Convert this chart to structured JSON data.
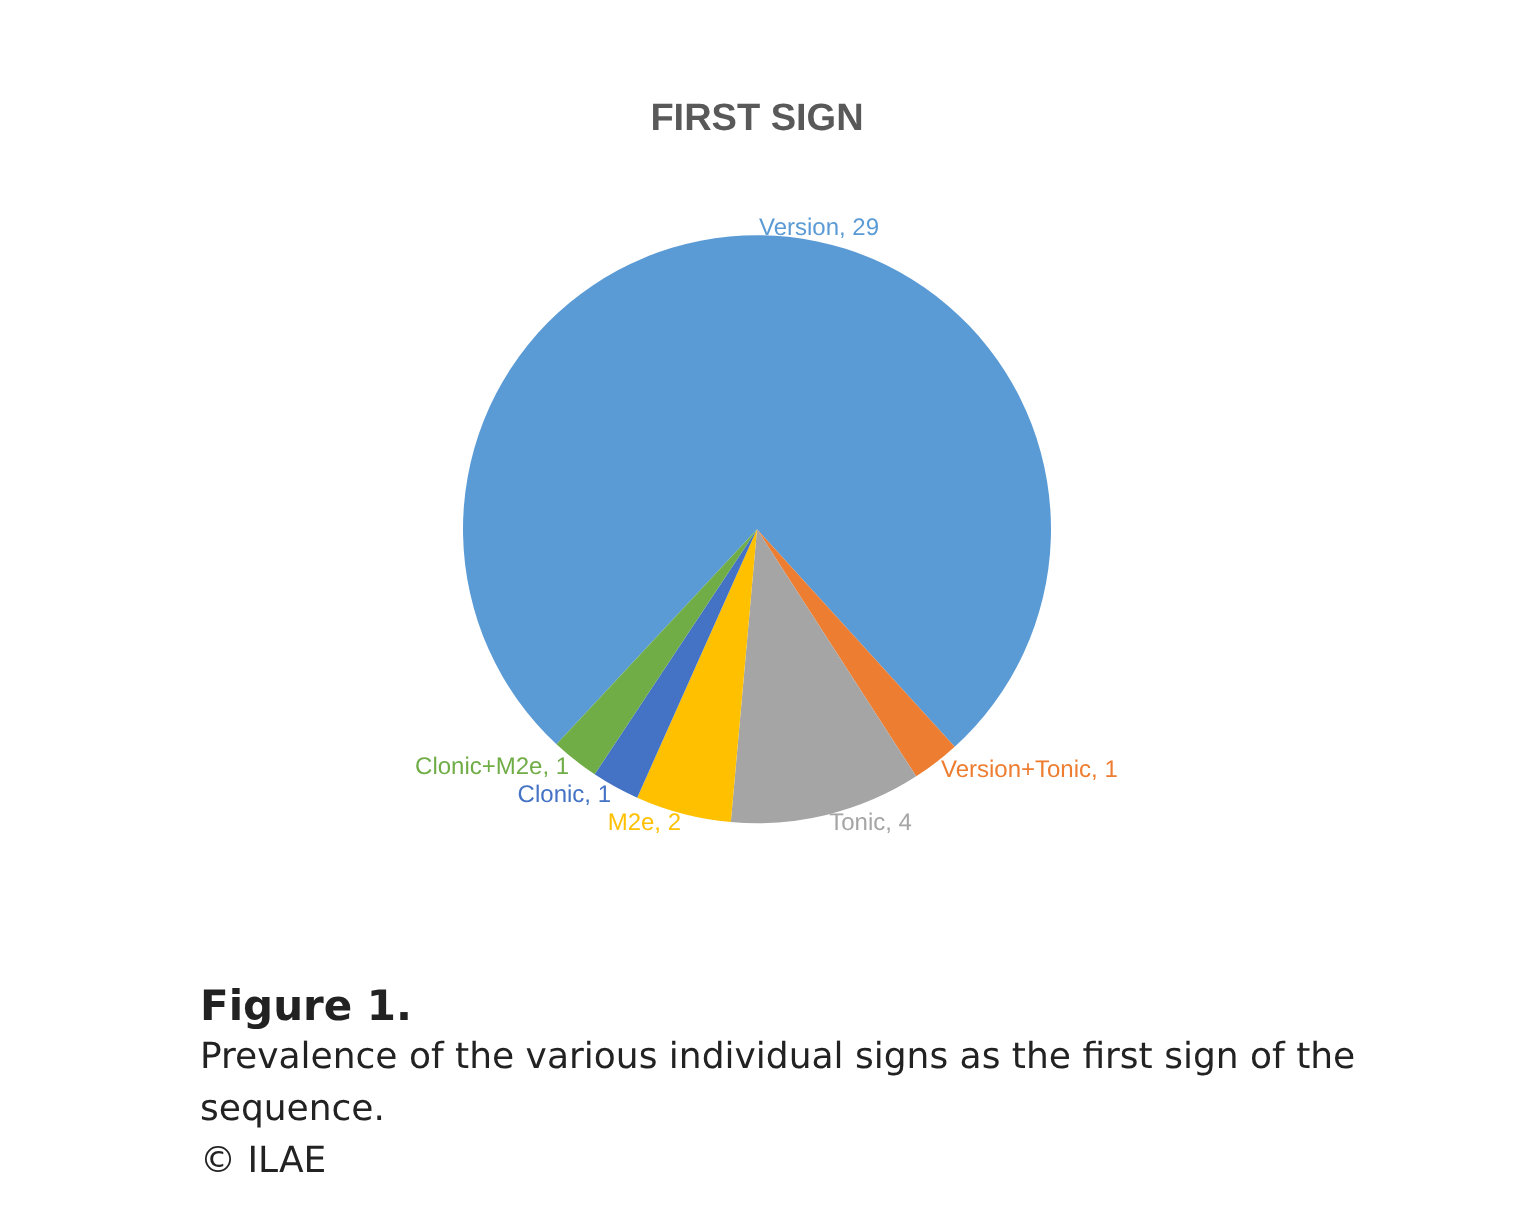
{
  "chart_data": {
    "type": "pie",
    "title": "FIRST SIGN",
    "categories": [
      "Version",
      "Version+Tonic",
      "Tonic",
      "M2e",
      "Clonic",
      "Clonic+M2e"
    ],
    "values": [
      29,
      1,
      4,
      2,
      1,
      1
    ],
    "colors": [
      "#5b9bd5",
      "#ed7d31",
      "#a5a5a5",
      "#ffc000",
      "#4472c4",
      "#70ad47"
    ],
    "value_labels": [
      ", 29",
      ", 1",
      ", 4",
      ", 2",
      ", 1",
      ", 1"
    ],
    "legend": false,
    "annotations": [
      "Figure 1.",
      "Prevalence of the various individual signs as the first sign of the sequence.",
      "© ILAE"
    ]
  }
}
